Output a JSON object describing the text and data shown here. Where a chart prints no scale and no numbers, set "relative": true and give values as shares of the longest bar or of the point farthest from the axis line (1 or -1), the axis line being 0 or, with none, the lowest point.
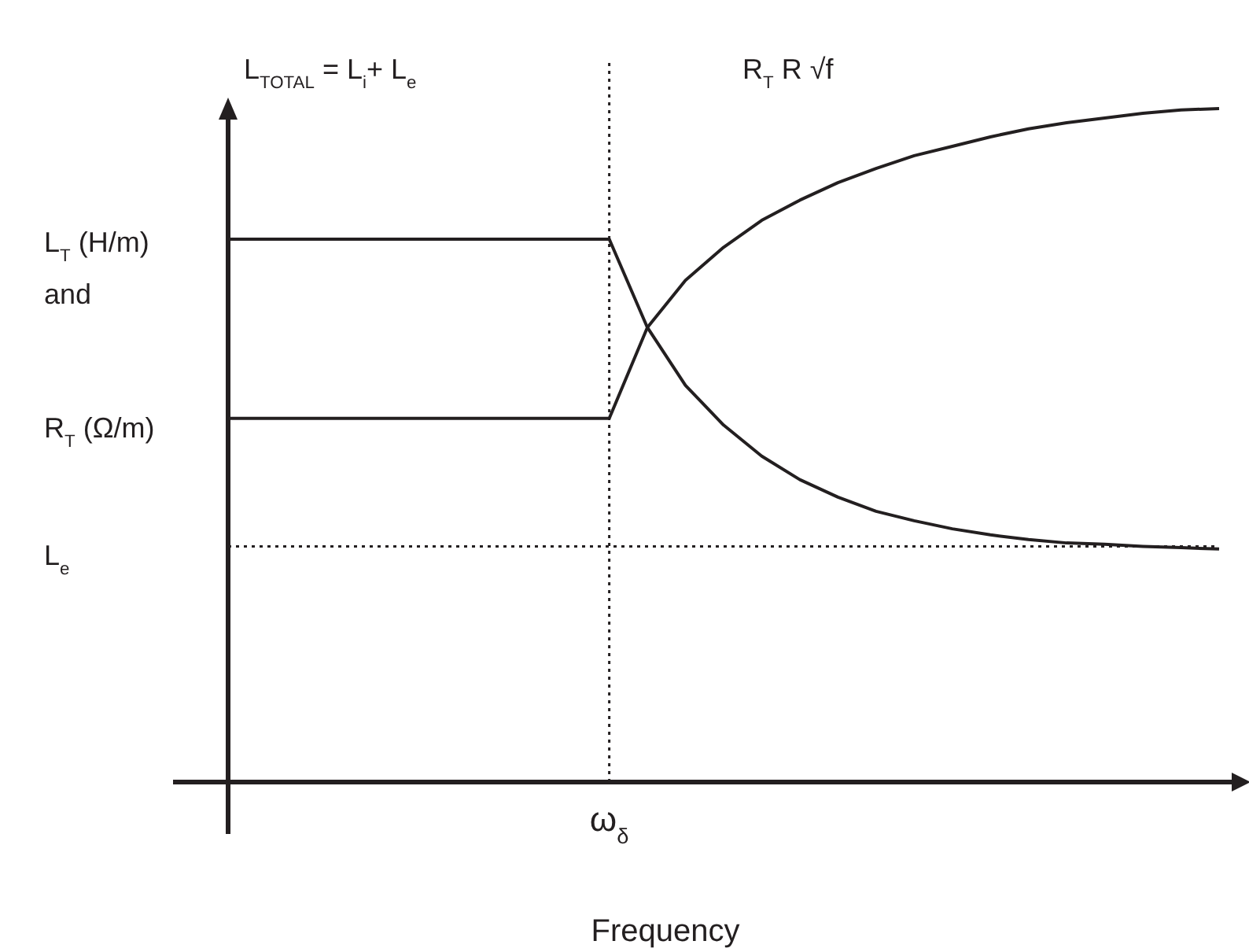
{
  "chart_data": {
    "type": "line",
    "relative": true,
    "xlabel": "Frequency",
    "ylabel": "L$_{T}$ (H/m)\nand\nR$_{T}$ (Ω/m)",
    "categories": [
      null,
      null,
      null,
      null,
      null,
      null,
      null,
      null,
      null,
      null,
      null,
      null,
      null,
      null,
      null,
      null,
      null,
      null,
      null,
      null,
      null,
      null,
      null,
      null,
      null,
      null,
      null
    ],
    "series": [
      {
        "color": "#231f20",
        "values": [
          0.806,
          0.806,
          0.806,
          0.806,
          0.806,
          0.806,
          0.806,
          0.806,
          0.806,
          0.806,
          0.806,
          0.675,
          0.589,
          0.53,
          0.484,
          0.449,
          0.423,
          0.402,
          0.388,
          0.376,
          0.367,
          0.36,
          0.355,
          0.353,
          0.35,
          0.348,
          0.346
        ]
      },
      {
        "color": "#231f20",
        "values": [
          0.54,
          0.54,
          0.54,
          0.54,
          0.54,
          0.54,
          0.54,
          0.54,
          0.54,
          0.54,
          0.54,
          0.675,
          0.745,
          0.794,
          0.834,
          0.864,
          0.89,
          0.911,
          0.93,
          0.944,
          0.958,
          0.97,
          0.979,
          0.986,
          0.993,
          0.998,
          1
        ]
      }
    ],
    "ref_lines": [
      {
        "axis": "y",
        "value": 0.35,
        "label": "L$_{e}$",
        "color": "#231f20",
        "line_style": "dotted"
      }
    ],
    "annotations": [
      "L$_{TOTAL}$ = L$_{i}$+ L$_{e}$",
      "R$_{T}$ R √f",
      "ω$_{δ}$"
    ],
    "line_style": "solid"
  }
}
